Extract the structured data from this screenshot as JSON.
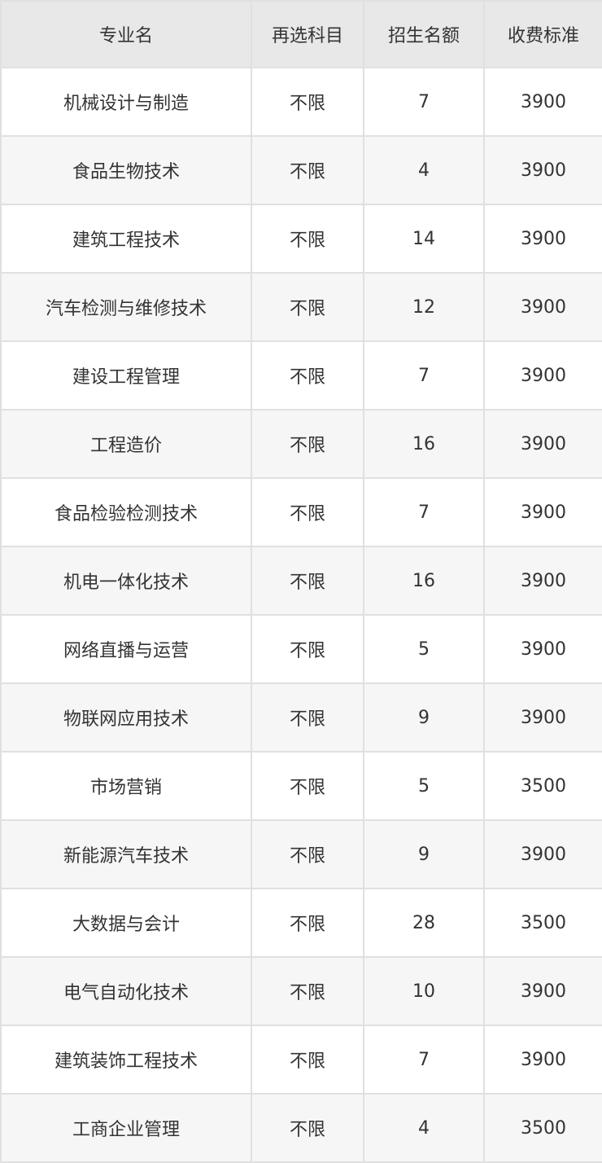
{
  "colors": {
    "header_bg": "#e8e8e8",
    "row_alt_bg": "#f5f6f5",
    "border": "#e0e0e0",
    "text": "#333333"
  },
  "table": {
    "headers": {
      "major": "专业名",
      "subject": "再选科目",
      "quota": "招生名额",
      "fee": "收费标准"
    },
    "rows": [
      {
        "major": "机械设计与制造",
        "subject": "不限",
        "quota": "7",
        "fee": "3900"
      },
      {
        "major": "食品生物技术",
        "subject": "不限",
        "quota": "4",
        "fee": "3900"
      },
      {
        "major": "建筑工程技术",
        "subject": "不限",
        "quota": "14",
        "fee": "3900"
      },
      {
        "major": "汽车检测与维修技术",
        "subject": "不限",
        "quota": "12",
        "fee": "3900"
      },
      {
        "major": "建设工程管理",
        "subject": "不限",
        "quota": "7",
        "fee": "3900"
      },
      {
        "major": "工程造价",
        "subject": "不限",
        "quota": "16",
        "fee": "3900"
      },
      {
        "major": "食品检验检测技术",
        "subject": "不限",
        "quota": "7",
        "fee": "3900"
      },
      {
        "major": "机电一体化技术",
        "subject": "不限",
        "quota": "16",
        "fee": "3900"
      },
      {
        "major": "网络直播与运营",
        "subject": "不限",
        "quota": "5",
        "fee": "3900"
      },
      {
        "major": "物联网应用技术",
        "subject": "不限",
        "quota": "9",
        "fee": "3900"
      },
      {
        "major": "市场营销",
        "subject": "不限",
        "quota": "5",
        "fee": "3500"
      },
      {
        "major": "新能源汽车技术",
        "subject": "不限",
        "quota": "9",
        "fee": "3900"
      },
      {
        "major": "大数据与会计",
        "subject": "不限",
        "quota": "28",
        "fee": "3500"
      },
      {
        "major": "电气自动化技术",
        "subject": "不限",
        "quota": "10",
        "fee": "3900"
      },
      {
        "major": "建筑装饰工程技术",
        "subject": "不限",
        "quota": "7",
        "fee": "3900"
      },
      {
        "major": "工商企业管理",
        "subject": "不限",
        "quota": "4",
        "fee": "3500"
      }
    ]
  },
  "chart_data": {
    "type": "table",
    "title": "",
    "columns": [
      "专业名",
      "再选科目",
      "招生名额",
      "收费标准"
    ],
    "rows": [
      [
        "机械设计与制造",
        "不限",
        7,
        3900
      ],
      [
        "食品生物技术",
        "不限",
        4,
        3900
      ],
      [
        "建筑工程技术",
        "不限",
        14,
        3900
      ],
      [
        "汽车检测与维修技术",
        "不限",
        12,
        3900
      ],
      [
        "建设工程管理",
        "不限",
        7,
        3900
      ],
      [
        "工程造价",
        "不限",
        16,
        3900
      ],
      [
        "食品检验检测技术",
        "不限",
        7,
        3900
      ],
      [
        "机电一体化技术",
        "不限",
        16,
        3900
      ],
      [
        "网络直播与运营",
        "不限",
        5,
        3900
      ],
      [
        "物联网应用技术",
        "不限",
        9,
        3900
      ],
      [
        "市场营销",
        "不限",
        5,
        3500
      ],
      [
        "新能源汽车技术",
        "不限",
        9,
        3900
      ],
      [
        "大数据与会计",
        "不限",
        28,
        3500
      ],
      [
        "电气自动化技术",
        "不限",
        10,
        3900
      ],
      [
        "建筑装饰工程技术",
        "不限",
        7,
        3900
      ],
      [
        "工商企业管理",
        "不限",
        4,
        3500
      ]
    ]
  }
}
